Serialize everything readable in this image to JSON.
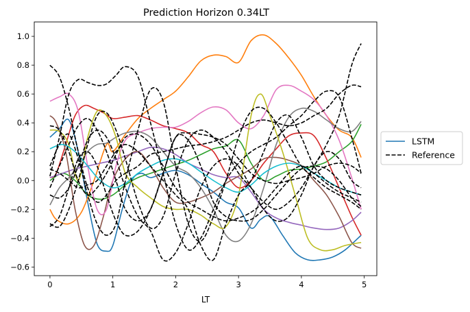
{
  "chart_data": {
    "type": "line",
    "title": "Prediction Horizon 0.34LT",
    "xlabel": "LT",
    "ylabel": "",
    "xlim": [
      -0.25,
      5.2
    ],
    "ylim": [
      -0.66,
      1.1
    ],
    "xticks": [
      0,
      1,
      2,
      3,
      4,
      5
    ],
    "xtick_labels": [
      "0",
      "1",
      "2",
      "3",
      "4",
      "5"
    ],
    "yticks": [
      -0.6,
      -0.4,
      -0.2,
      0.0,
      0.2,
      0.4,
      0.6,
      0.8,
      1.0
    ],
    "ytick_labels": [
      "−0.6",
      "−0.4",
      "−0.2",
      "0.0",
      "0.2",
      "0.4",
      "0.6",
      "0.8",
      "1.0"
    ],
    "grid": false,
    "legend_position": "center-right outside",
    "legend": [
      {
        "label": "LSTM",
        "color": "#1f77b4",
        "dash": "solid"
      },
      {
        "label": "Reference",
        "color": "#000000",
        "dash": "dashed"
      }
    ],
    "series": [
      {
        "name": "LSTM",
        "color": "#1f77b4",
        "dash": "solid",
        "x": [
          0,
          0.15,
          0.3,
          0.45,
          0.6,
          0.75,
          0.9,
          1.0,
          1.15,
          1.3,
          1.45,
          1.6,
          1.8,
          2.0,
          2.2,
          2.4,
          2.6,
          2.8,
          3.0,
          3.2,
          3.35,
          3.5,
          3.7,
          3.9,
          4.1,
          4.3,
          4.5,
          4.7,
          4.95
        ],
        "y": [
          0.3,
          0.36,
          0.42,
          0.2,
          -0.15,
          -0.44,
          -0.49,
          -0.45,
          -0.2,
          0.0,
          0.05,
          0.02,
          0.05,
          0.07,
          0.04,
          -0.02,
          -0.08,
          -0.15,
          -0.19,
          -0.33,
          -0.27,
          -0.25,
          -0.38,
          -0.5,
          -0.55,
          -0.55,
          -0.53,
          -0.48,
          -0.38
        ]
      },
      {
        "name": "",
        "color": "#ff7f0e",
        "dash": "solid",
        "x": [
          0,
          0.1,
          0.3,
          0.5,
          0.7,
          0.9,
          1.0,
          1.2,
          1.4,
          1.6,
          1.8,
          2.0,
          2.2,
          2.4,
          2.6,
          2.8,
          3.0,
          3.2,
          3.4,
          3.6,
          3.8,
          4.0,
          4.2,
          4.4,
          4.6,
          4.8,
          4.95
        ],
        "y": [
          -0.2,
          -0.27,
          -0.3,
          -0.22,
          0.0,
          0.25,
          0.2,
          0.32,
          0.43,
          0.5,
          0.56,
          0.62,
          0.72,
          0.83,
          0.87,
          0.86,
          0.82,
          0.97,
          1.01,
          0.95,
          0.85,
          0.73,
          0.58,
          0.45,
          0.35,
          0.3,
          0.16
        ]
      },
      {
        "name": "",
        "color": "#2ca02c",
        "dash": "solid",
        "x": [
          0,
          0.2,
          0.4,
          0.6,
          0.8,
          1.0,
          1.2,
          1.4,
          1.6,
          1.8,
          2.0,
          2.2,
          2.4,
          2.6,
          2.8,
          3.0,
          3.2,
          3.4,
          3.6,
          3.8,
          4.0,
          4.2,
          4.4,
          4.6,
          4.8,
          4.95
        ],
        "y": [
          0.0,
          0.05,
          0.0,
          -0.1,
          -0.13,
          -0.1,
          -0.03,
          0.02,
          0.05,
          0.08,
          0.11,
          0.14,
          0.18,
          0.22,
          0.24,
          0.28,
          0.12,
          0.0,
          0.03,
          0.07,
          0.08,
          0.1,
          0.13,
          0.2,
          0.27,
          0.39
        ]
      },
      {
        "name": "",
        "color": "#d62728",
        "dash": "solid",
        "x": [
          0,
          0.1,
          0.25,
          0.4,
          0.55,
          0.7,
          0.85,
          1.0,
          1.2,
          1.4,
          1.6,
          1.8,
          2.0,
          2.2,
          2.4,
          2.6,
          2.8,
          3.0,
          3.2,
          3.4,
          3.6,
          3.8,
          4.0,
          4.2,
          4.4,
          4.6,
          4.8,
          4.95
        ],
        "y": [
          0.02,
          0.05,
          0.25,
          0.45,
          0.52,
          0.5,
          0.47,
          0.43,
          0.44,
          0.45,
          0.42,
          0.38,
          0.36,
          0.33,
          0.25,
          0.2,
          0.05,
          -0.05,
          0.0,
          0.12,
          0.22,
          0.31,
          0.33,
          0.31,
          0.15,
          -0.05,
          -0.25,
          -0.38
        ]
      },
      {
        "name": "",
        "color": "#9467bd",
        "dash": "solid",
        "x": [
          0,
          0.2,
          0.4,
          0.6,
          0.8,
          1.0,
          1.2,
          1.4,
          1.6,
          1.8,
          2.0,
          2.2,
          2.4,
          2.6,
          2.8,
          3.0,
          3.2,
          3.4,
          3.6,
          3.8,
          4.0,
          4.2,
          4.4,
          4.6,
          4.8,
          4.95
        ],
        "y": [
          0.02,
          0.05,
          0.08,
          0.1,
          0.12,
          0.14,
          0.17,
          0.2,
          0.23,
          0.22,
          0.18,
          0.12,
          0.08,
          0.04,
          0.02,
          0.02,
          -0.08,
          -0.2,
          -0.26,
          -0.29,
          -0.31,
          -0.33,
          -0.34,
          -0.33,
          -0.28,
          -0.22
        ]
      },
      {
        "name": "",
        "color": "#8c564b",
        "dash": "solid",
        "x": [
          0,
          0.1,
          0.25,
          0.4,
          0.55,
          0.7,
          0.85,
          1.0,
          1.2,
          1.4,
          1.6,
          1.8,
          2.0,
          2.2,
          2.4,
          2.6,
          2.8,
          3.0,
          3.2,
          3.4,
          3.6,
          3.8,
          4.0,
          4.2,
          4.4,
          4.6,
          4.8,
          4.95
        ],
        "y": [
          0.45,
          0.4,
          0.2,
          -0.2,
          -0.45,
          -0.45,
          -0.25,
          0.0,
          0.15,
          0.2,
          0.1,
          -0.05,
          -0.15,
          -0.15,
          -0.12,
          -0.08,
          -0.02,
          0.03,
          0.08,
          0.15,
          0.16,
          0.14,
          0.1,
          0.0,
          -0.1,
          -0.25,
          -0.43,
          -0.47
        ]
      },
      {
        "name": "",
        "color": "#e377c2",
        "dash": "solid",
        "x": [
          0,
          0.15,
          0.3,
          0.45,
          0.6,
          0.75,
          0.9,
          1.05,
          1.2,
          1.4,
          1.6,
          1.8,
          2.0,
          2.2,
          2.4,
          2.6,
          2.8,
          3.0,
          3.2,
          3.4,
          3.6,
          3.8,
          4.0,
          4.2,
          4.4,
          4.6,
          4.8,
          4.95
        ],
        "y": [
          0.55,
          0.58,
          0.6,
          0.48,
          0.1,
          -0.2,
          -0.2,
          0.1,
          0.28,
          0.33,
          0.36,
          0.37,
          0.37,
          0.41,
          0.47,
          0.51,
          0.49,
          0.4,
          0.36,
          0.45,
          0.63,
          0.66,
          0.62,
          0.56,
          0.45,
          0.28,
          0.02,
          -0.2
        ]
      },
      {
        "name": "",
        "color": "#7f7f7f",
        "dash": "solid",
        "x": [
          0,
          0.15,
          0.3,
          0.45,
          0.6,
          0.75,
          0.9,
          1.05,
          1.2,
          1.4,
          1.6,
          1.8,
          2.0,
          2.2,
          2.4,
          2.6,
          2.8,
          3.0,
          3.2,
          3.4,
          3.6,
          3.8,
          4.0,
          4.2,
          4.4,
          4.6,
          4.8,
          4.95
        ],
        "y": [
          -0.17,
          -0.05,
          0.02,
          0.1,
          0.2,
          0.25,
          0.26,
          0.3,
          0.33,
          0.34,
          0.3,
          0.2,
          0.1,
          0.05,
          -0.05,
          -0.2,
          -0.38,
          -0.42,
          -0.3,
          -0.05,
          0.25,
          0.44,
          0.5,
          0.48,
          0.42,
          0.36,
          0.34,
          0.41
        ]
      },
      {
        "name": "",
        "color": "#bcbd22",
        "dash": "solid",
        "x": [
          0,
          0.15,
          0.3,
          0.45,
          0.6,
          0.75,
          0.9,
          1.05,
          1.2,
          1.4,
          1.6,
          1.8,
          2.0,
          2.2,
          2.4,
          2.6,
          2.8,
          3.0,
          3.2,
          3.35,
          3.5,
          3.7,
          3.9,
          4.1,
          4.3,
          4.5,
          4.7,
          4.95
        ],
        "y": [
          0.35,
          0.34,
          0.25,
          0.0,
          0.3,
          0.48,
          0.45,
          0.3,
          0.05,
          -0.05,
          -0.12,
          -0.18,
          -0.2,
          -0.2,
          -0.24,
          -0.3,
          -0.32,
          -0.1,
          0.45,
          0.6,
          0.45,
          0.2,
          -0.1,
          -0.4,
          -0.48,
          -0.48,
          -0.45,
          -0.43
        ]
      },
      {
        "name": "",
        "color": "#17becf",
        "dash": "solid",
        "x": [
          0,
          0.2,
          0.4,
          0.6,
          0.8,
          1.0,
          1.2,
          1.4,
          1.6,
          1.8,
          2.0,
          2.2,
          2.4,
          2.6,
          2.8,
          3.0,
          3.2,
          3.4,
          3.6,
          3.8,
          4.0,
          4.2,
          4.4,
          4.6,
          4.8,
          4.95
        ],
        "y": [
          0.22,
          0.25,
          0.2,
          0.1,
          0.0,
          -0.05,
          -0.02,
          0.05,
          0.1,
          0.14,
          0.15,
          0.12,
          0.06,
          0.0,
          -0.05,
          -0.08,
          -0.03,
          0.05,
          0.1,
          0.12,
          0.1,
          0.05,
          0.0,
          -0.05,
          -0.08,
          -0.1
        ]
      },
      {
        "name": "Reference",
        "color": "#000000",
        "dash": "dashed",
        "x": [
          0,
          0.15,
          0.3,
          0.45,
          0.6,
          0.75,
          0.9,
          1.05,
          1.2,
          1.4,
          1.6,
          1.8,
          2.0,
          2.2,
          2.4,
          2.6,
          2.8,
          3.0,
          3.2,
          3.4,
          3.6,
          3.8,
          4.0,
          4.2,
          4.4,
          4.6,
          4.8,
          4.95
        ],
        "y": [
          0.8,
          0.72,
          0.5,
          0.2,
          -0.05,
          -0.15,
          -0.1,
          0.0,
          0.05,
          0.1,
          0.18,
          0.2,
          0.22,
          0.24,
          0.25,
          0.27,
          0.3,
          0.35,
          0.4,
          0.42,
          0.4,
          0.38,
          0.4,
          0.45,
          0.5,
          0.6,
          0.66,
          0.65
        ]
      },
      {
        "name": "",
        "color": "#000000",
        "dash": "dashed",
        "x": [
          0,
          0.15,
          0.3,
          0.45,
          0.6,
          0.75,
          0.9,
          1.05,
          1.2,
          1.4,
          1.6,
          1.8,
          2.0,
          2.2,
          2.4,
          2.6,
          2.8,
          3.0,
          3.2,
          3.4,
          3.6,
          3.8,
          4.0,
          4.2,
          4.4,
          4.6,
          4.8,
          4.95
        ],
        "y": [
          0.03,
          0.3,
          0.6,
          0.7,
          0.68,
          0.66,
          0.67,
          0.73,
          0.79,
          0.72,
          0.4,
          0.05,
          -0.3,
          -0.48,
          -0.4,
          -0.2,
          0.0,
          0.12,
          0.2,
          0.25,
          0.3,
          0.38,
          0.45,
          0.55,
          0.62,
          0.58,
          0.3,
          0.05
        ]
      },
      {
        "name": "",
        "color": "#000000",
        "dash": "dashed",
        "x": [
          0,
          0.15,
          0.3,
          0.45,
          0.6,
          0.75,
          0.9,
          1.05,
          1.2,
          1.4,
          1.6,
          1.8,
          2.0,
          2.2,
          2.4,
          2.6,
          2.8,
          3.0,
          3.2,
          3.4,
          3.6,
          3.8,
          4.0,
          4.2,
          4.4,
          4.6,
          4.8,
          4.95
        ],
        "y": [
          -0.3,
          -0.32,
          -0.2,
          0.0,
          0.25,
          0.45,
          0.47,
          0.35,
          0.15,
          -0.15,
          -0.33,
          -0.25,
          0.05,
          0.28,
          0.35,
          0.3,
          0.2,
          0.05,
          -0.05,
          -0.15,
          -0.2,
          -0.15,
          -0.05,
          0.1,
          0.25,
          0.45,
          0.8,
          0.95
        ]
      },
      {
        "name": "",
        "color": "#000000",
        "dash": "dashed",
        "x": [
          0,
          0.15,
          0.3,
          0.45,
          0.6,
          0.75,
          0.9,
          1.05,
          1.2,
          1.4,
          1.6,
          1.8,
          2.0,
          2.2,
          2.4,
          2.6,
          2.8,
          3.0,
          3.2,
          3.4,
          3.6,
          3.8,
          4.0,
          4.2,
          4.4,
          4.6,
          4.8,
          4.95
        ],
        "y": [
          0.1,
          0.25,
          0.32,
          0.15,
          -0.1,
          -0.3,
          -0.38,
          -0.3,
          0.0,
          0.35,
          0.63,
          0.55,
          0.1,
          -0.3,
          -0.42,
          -0.25,
          0.0,
          0.3,
          0.48,
          0.5,
          0.4,
          0.25,
          0.1,
          0.02,
          -0.05,
          -0.1,
          -0.15,
          -0.2
        ]
      },
      {
        "name": "",
        "color": "#000000",
        "dash": "dashed",
        "x": [
          0,
          0.15,
          0.3,
          0.45,
          0.6,
          0.75,
          0.9,
          1.05,
          1.2,
          1.4,
          1.6,
          1.8,
          2.0,
          2.2,
          2.4,
          2.6,
          2.8,
          3.0,
          3.2,
          3.4,
          3.6,
          3.8,
          4.0,
          4.2,
          4.4,
          4.6,
          4.8,
          4.95
        ],
        "y": [
          -0.05,
          0.1,
          0.25,
          0.38,
          0.43,
          0.35,
          0.2,
          0.0,
          -0.2,
          -0.28,
          -0.2,
          0.05,
          0.3,
          0.28,
          0.1,
          -0.15,
          -0.25,
          -0.28,
          -0.27,
          -0.2,
          -0.1,
          0.0,
          0.08,
          0.1,
          0.08,
          0.0,
          -0.12,
          -0.18
        ]
      },
      {
        "name": "",
        "color": "#000000",
        "dash": "dashed",
        "x": [
          0,
          0.15,
          0.3,
          0.45,
          0.6,
          0.75,
          0.9,
          1.05,
          1.2,
          1.4,
          1.6,
          1.8,
          2.0,
          2.2,
          2.4,
          2.6,
          2.8,
          3.0,
          3.2,
          3.4,
          3.6,
          3.8,
          4.0,
          4.2,
          4.4,
          4.6,
          4.8,
          4.95
        ],
        "y": [
          0.38,
          0.35,
          0.2,
          0.0,
          -0.1,
          -0.05,
          0.05,
          0.18,
          0.3,
          0.32,
          0.25,
          0.1,
          -0.05,
          -0.15,
          -0.2,
          -0.25,
          -0.28,
          -0.26,
          -0.22,
          -0.15,
          -0.05,
          0.05,
          0.1,
          0.05,
          -0.02,
          -0.08,
          -0.12,
          -0.15
        ]
      },
      {
        "name": "",
        "color": "#000000",
        "dash": "dashed",
        "x": [
          0,
          0.15,
          0.3,
          0.45,
          0.6,
          0.75,
          0.9,
          1.05,
          1.2,
          1.4,
          1.6,
          1.8,
          2.0,
          2.2,
          2.4,
          2.6,
          2.8,
          3.0,
          3.2,
          3.4,
          3.6,
          3.8,
          4.0,
          4.2,
          4.4,
          4.6,
          4.8,
          4.95
        ],
        "y": [
          -0.32,
          -0.25,
          -0.05,
          0.15,
          0.2,
          0.1,
          -0.1,
          -0.28,
          -0.38,
          -0.35,
          -0.2,
          0.05,
          0.3,
          0.33,
          0.32,
          0.3,
          0.25,
          0.15,
          0.05,
          0.0,
          -0.02,
          0.0,
          0.02,
          0.05,
          0.1,
          0.12,
          0.1,
          0.05
        ]
      },
      {
        "name": "",
        "color": "#000000",
        "dash": "dashed",
        "x": [
          0,
          0.15,
          0.3,
          0.45,
          0.6,
          0.75,
          0.9,
          1.05,
          1.2,
          1.4,
          1.6,
          1.8,
          2.0,
          2.2,
          2.4,
          2.6,
          2.8,
          3.0,
          3.2,
          3.4,
          3.6,
          3.8,
          4.0,
          4.2,
          4.4,
          4.6,
          4.8,
          4.95
        ],
        "y": [
          0.08,
          0.05,
          0.0,
          -0.05,
          -0.03,
          0.0,
          0.1,
          0.2,
          0.25,
          0.2,
          0.1,
          0.0,
          -0.1,
          -0.2,
          -0.45,
          -0.55,
          -0.3,
          -0.1,
          0.0,
          0.2,
          0.4,
          0.45,
          0.3,
          0.1,
          0.0,
          -0.05,
          -0.08,
          -0.1
        ]
      },
      {
        "name": "",
        "color": "#000000",
        "dash": "dashed",
        "x": [
          0,
          0.15,
          0.3,
          0.45,
          0.6,
          0.75,
          0.9,
          1.05,
          1.2,
          1.4,
          1.6,
          1.8,
          2.0,
          2.2,
          2.4,
          2.6,
          2.8,
          3.0,
          3.2,
          3.4,
          3.6,
          3.8,
          4.0,
          4.2,
          4.4,
          4.6,
          4.8,
          4.95
        ],
        "y": [
          -0.1,
          -0.12,
          -0.05,
          0.1,
          0.28,
          0.35,
          0.3,
          0.15,
          -0.05,
          -0.25,
          -0.35,
          -0.55,
          -0.5,
          -0.3,
          -0.05,
          0.1,
          0.15,
          0.1,
          -0.05,
          -0.2,
          -0.28,
          -0.25,
          -0.1,
          0.1,
          0.2,
          0.15,
          0.0,
          -0.05
        ]
      }
    ]
  }
}
